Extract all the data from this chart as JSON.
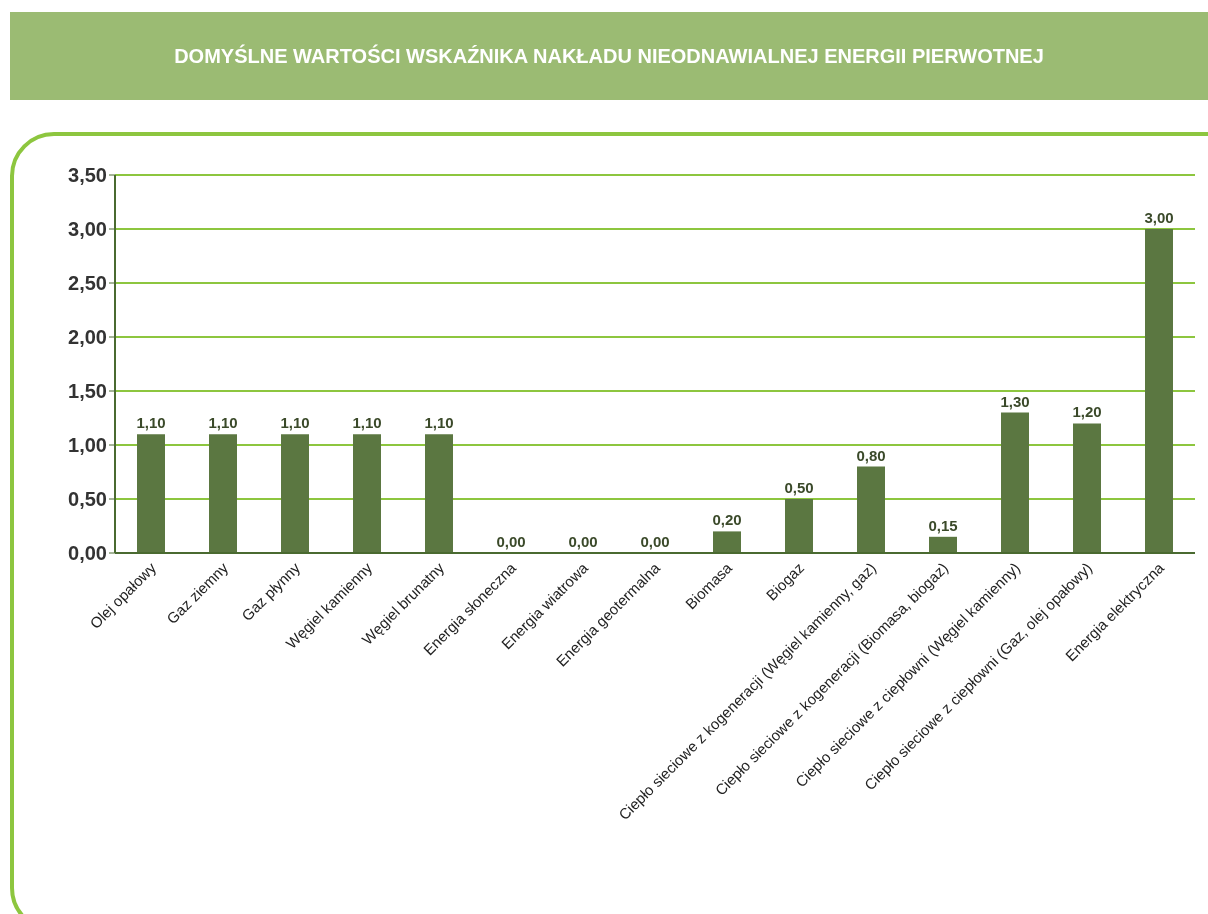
{
  "chart_data": {
    "type": "bar",
    "title": "DOMYŚLNE WARTOŚCI WSKAŹNIKA NAKŁADU NIEODNAWIALNEJ ENERGII PIERWOTNEJ",
    "categories": [
      "Olej opałowy",
      "Gaz ziemny",
      "Gaz płynny",
      "Węgiel kamienny",
      "Węgiel brunatny",
      "Energia słoneczna",
      "Energia wiatrowa",
      "Energia geotermalna",
      "Biomasa",
      "Biogaz",
      "Ciepło sieciowe z kogeneracji (Węgiel kamienny, gaz)",
      "Ciepło sieciowe z kogeneracji (Biomasa, biogaz)",
      "Ciepło sieciowe z ciepłowni (Węgiel kamienny)",
      "Ciepło sieciowe z ciepłowni (Gaz, olej opałowy)",
      "Energia elektryczna"
    ],
    "values": [
      1.1,
      1.1,
      1.1,
      1.1,
      1.1,
      0,
      0,
      0,
      0.2,
      0.5,
      0.8,
      0.15,
      1.3,
      1.2,
      3.0
    ],
    "value_labels": [
      "1,10",
      "1,10",
      "1,10",
      "1,10",
      "1,10",
      "0,00",
      "0,00",
      "0,00",
      "0,20",
      "0,50",
      "0,80",
      "0,15",
      "1,30",
      "1,20",
      "3,00"
    ],
    "color": "#5b7741",
    "ylim": [
      0,
      3.5
    ],
    "yticks": [
      {
        "value": 0,
        "label": "0,00"
      },
      {
        "value": 0.5,
        "label": "0,50"
      },
      {
        "value": 1,
        "label": "1,00"
      },
      {
        "value": 1.5,
        "label": "1,50"
      },
      {
        "value": 2,
        "label": "2,00"
      },
      {
        "value": 2.5,
        "label": "2,50"
      },
      {
        "value": 3,
        "label": "3,00"
      },
      {
        "value": 3.5,
        "label": "3,50"
      }
    ],
    "grid": "y"
  }
}
